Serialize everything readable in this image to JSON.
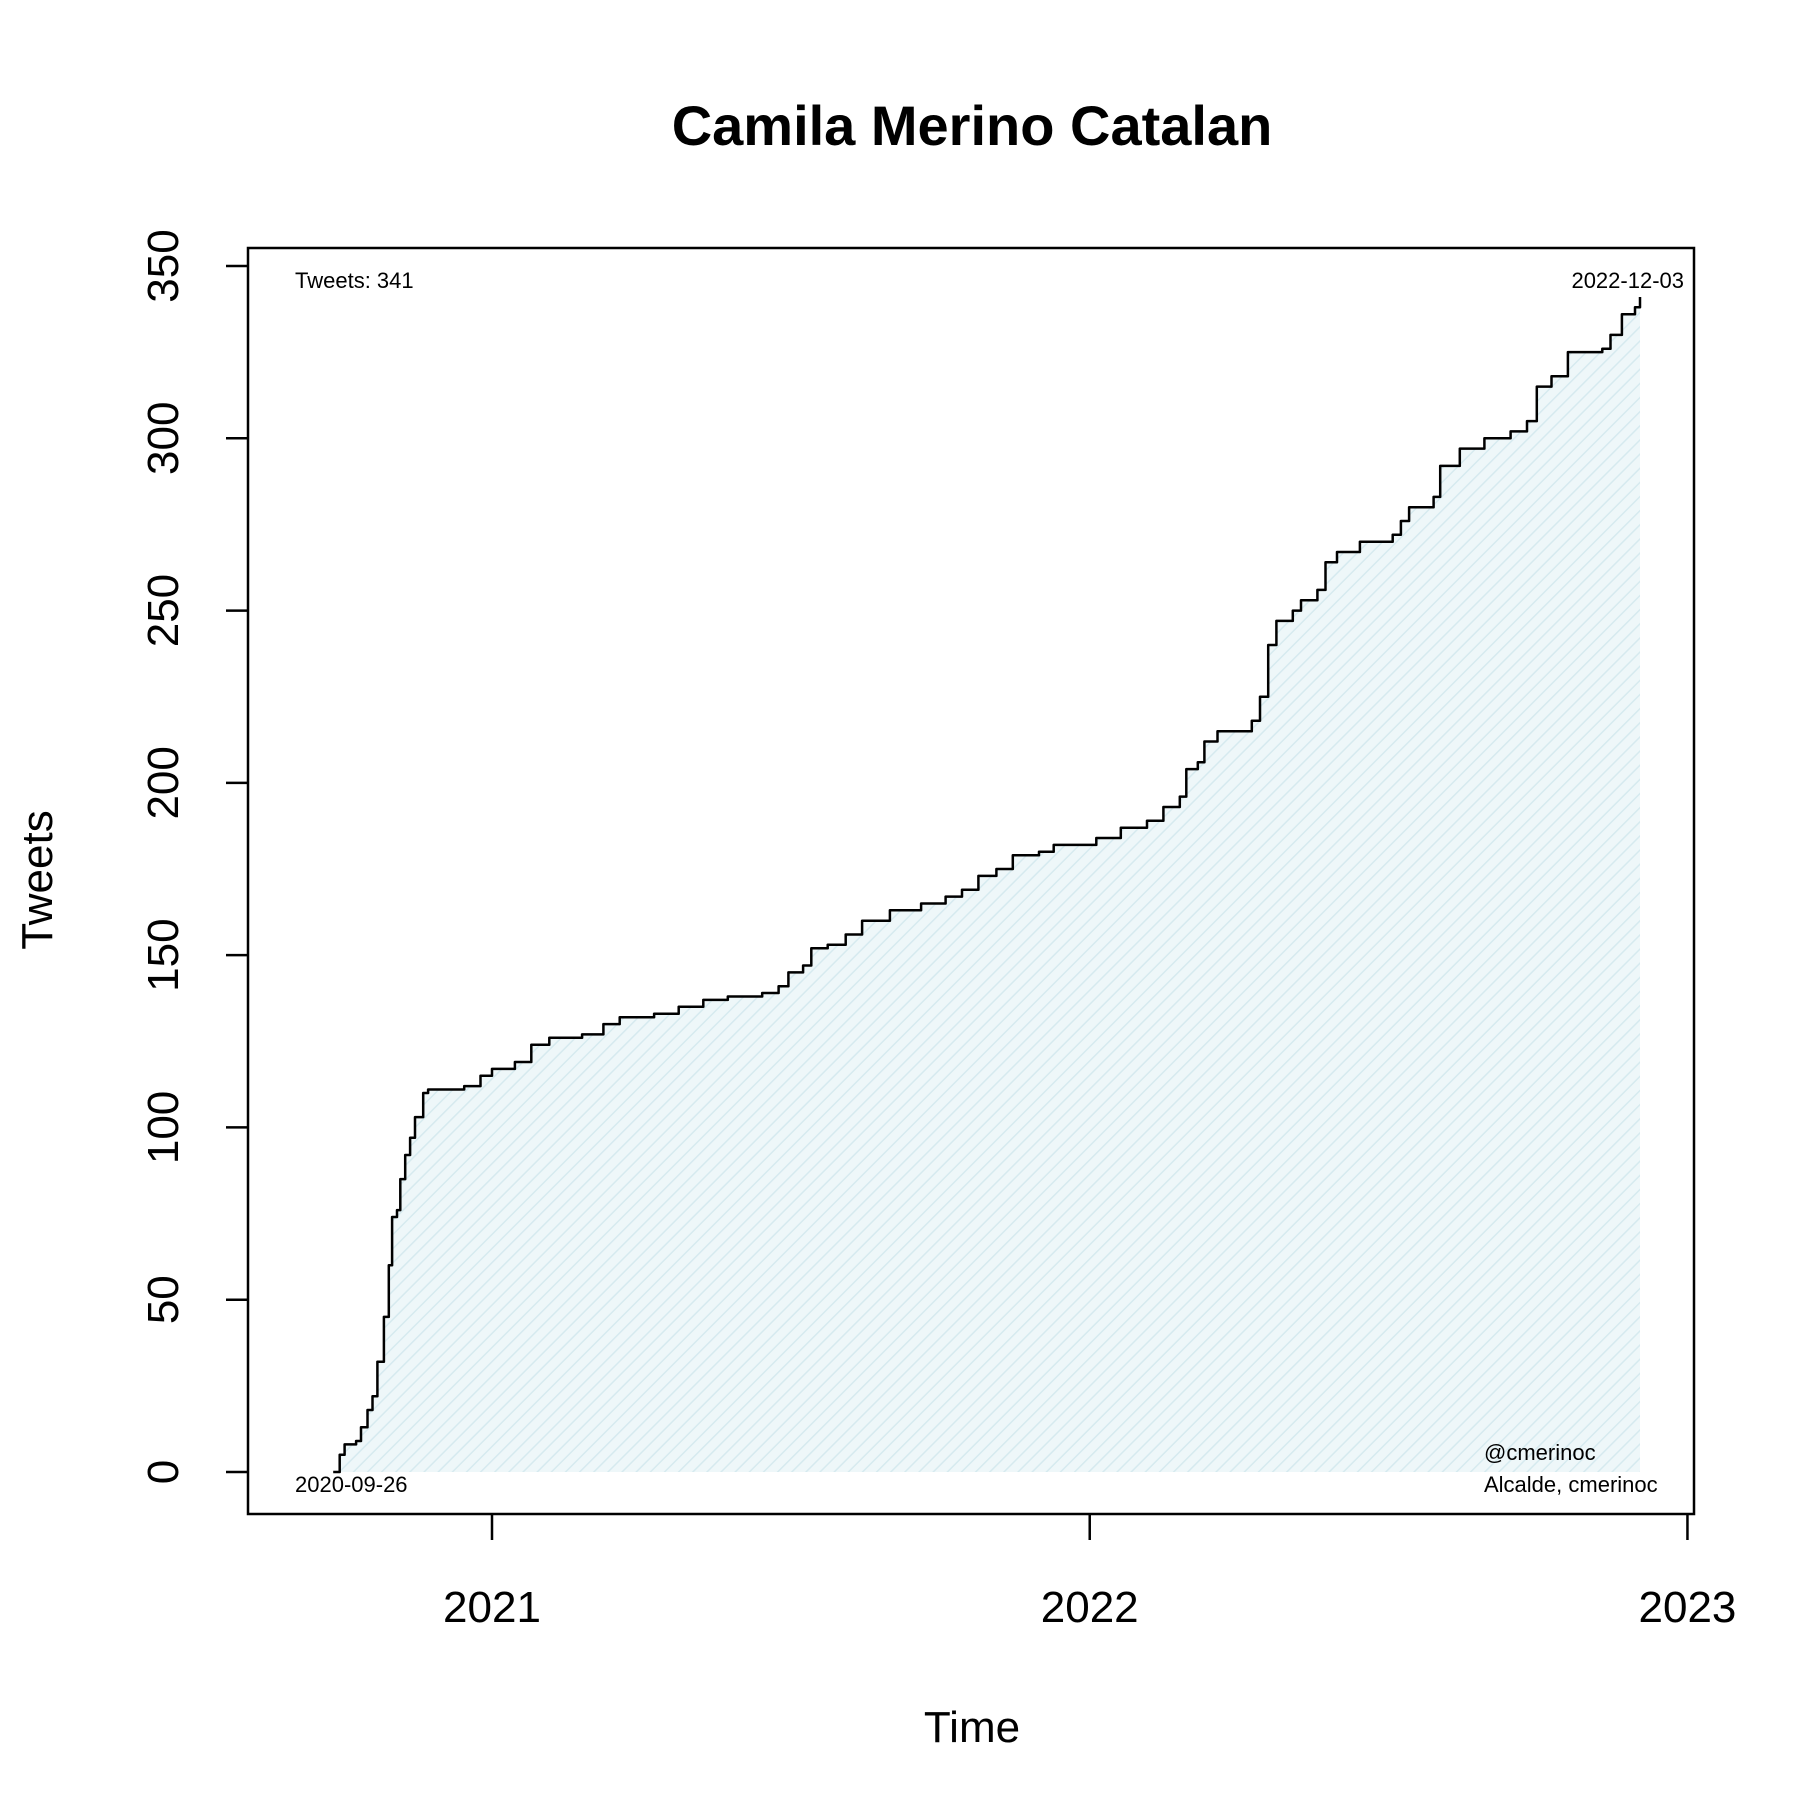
{
  "chart_data": {
    "type": "area",
    "title": "Camila Merino Catalan",
    "xlabel": "Time",
    "ylabel": "Tweets",
    "ylim": [
      0,
      350
    ],
    "xlim": [
      "2020-08-05",
      "2023-01-05"
    ],
    "yticks": [
      0,
      50,
      100,
      150,
      200,
      250,
      300,
      350
    ],
    "xticks": [
      {
        "date": "2021-01-01",
        "label": "2021"
      },
      {
        "date": "2022-01-01",
        "label": "2022"
      },
      {
        "date": "2023-01-01",
        "label": "2023"
      }
    ],
    "grid": false,
    "line_color": "#000000",
    "fill_color": "#e3f1f4",
    "annotations": {
      "tweets_count": "Tweets: 341",
      "start_date": "2020-09-26",
      "end_date": "2022-12-03",
      "handle": "@cmerinoc",
      "subtitle": "Alcalde, cmerinoc"
    },
    "series": [
      {
        "points": [
          [
            "2020-09-26",
            0
          ],
          [
            "2020-09-30",
            5
          ],
          [
            "2020-10-03",
            8
          ],
          [
            "2020-10-10",
            9
          ],
          [
            "2020-10-13",
            13
          ],
          [
            "2020-10-17",
            18
          ],
          [
            "2020-10-20",
            22
          ],
          [
            "2020-10-23",
            32
          ],
          [
            "2020-10-27",
            45
          ],
          [
            "2020-10-30",
            60
          ],
          [
            "2020-11-01",
            74
          ],
          [
            "2020-11-04",
            76
          ],
          [
            "2020-11-06",
            85
          ],
          [
            "2020-11-09",
            92
          ],
          [
            "2020-11-12",
            97
          ],
          [
            "2020-11-15",
            103
          ],
          [
            "2020-11-20",
            110
          ],
          [
            "2020-11-23",
            111
          ],
          [
            "2020-12-15",
            112
          ],
          [
            "2020-12-25",
            115
          ],
          [
            "2021-01-01",
            117
          ],
          [
            "2021-01-15",
            119
          ],
          [
            "2021-01-25",
            124
          ],
          [
            "2021-02-05",
            126
          ],
          [
            "2021-02-25",
            127
          ],
          [
            "2021-03-10",
            130
          ],
          [
            "2021-03-20",
            132
          ],
          [
            "2021-04-10",
            133
          ],
          [
            "2021-04-25",
            135
          ],
          [
            "2021-05-10",
            137
          ],
          [
            "2021-05-25",
            138
          ],
          [
            "2021-06-15",
            139
          ],
          [
            "2021-06-25",
            141
          ],
          [
            "2021-07-01",
            145
          ],
          [
            "2021-07-10",
            147
          ],
          [
            "2021-07-15",
            152
          ],
          [
            "2021-07-25",
            153
          ],
          [
            "2021-08-05",
            156
          ],
          [
            "2021-08-15",
            160
          ],
          [
            "2021-09-01",
            163
          ],
          [
            "2021-09-20",
            165
          ],
          [
            "2021-10-05",
            167
          ],
          [
            "2021-10-15",
            169
          ],
          [
            "2021-10-25",
            173
          ],
          [
            "2021-11-05",
            175
          ],
          [
            "2021-11-15",
            179
          ],
          [
            "2021-12-01",
            180
          ],
          [
            "2021-12-10",
            182
          ],
          [
            "2022-01-05",
            184
          ],
          [
            "2022-01-20",
            187
          ],
          [
            "2022-02-05",
            189
          ],
          [
            "2022-02-15",
            193
          ],
          [
            "2022-02-25",
            196
          ],
          [
            "2022-03-01",
            204
          ],
          [
            "2022-03-08",
            206
          ],
          [
            "2022-03-12",
            212
          ],
          [
            "2022-03-20",
            215
          ],
          [
            "2022-04-10",
            218
          ],
          [
            "2022-04-15",
            225
          ],
          [
            "2022-04-20",
            240
          ],
          [
            "2022-04-25",
            247
          ],
          [
            "2022-05-05",
            250
          ],
          [
            "2022-05-10",
            253
          ],
          [
            "2022-05-20",
            256
          ],
          [
            "2022-05-25",
            264
          ],
          [
            "2022-06-01",
            267
          ],
          [
            "2022-06-15",
            270
          ],
          [
            "2022-07-05",
            272
          ],
          [
            "2022-07-10",
            276
          ],
          [
            "2022-07-15",
            280
          ],
          [
            "2022-07-30",
            283
          ],
          [
            "2022-08-03",
            292
          ],
          [
            "2022-08-15",
            297
          ],
          [
            "2022-08-30",
            300
          ],
          [
            "2022-09-15",
            302
          ],
          [
            "2022-09-25",
            305
          ],
          [
            "2022-10-01",
            315
          ],
          [
            "2022-10-10",
            318
          ],
          [
            "2022-10-20",
            325
          ],
          [
            "2022-11-10",
            326
          ],
          [
            "2022-11-15",
            330
          ],
          [
            "2022-11-22",
            336
          ],
          [
            "2022-11-30",
            338
          ],
          [
            "2022-12-03",
            341
          ]
        ]
      }
    ]
  }
}
